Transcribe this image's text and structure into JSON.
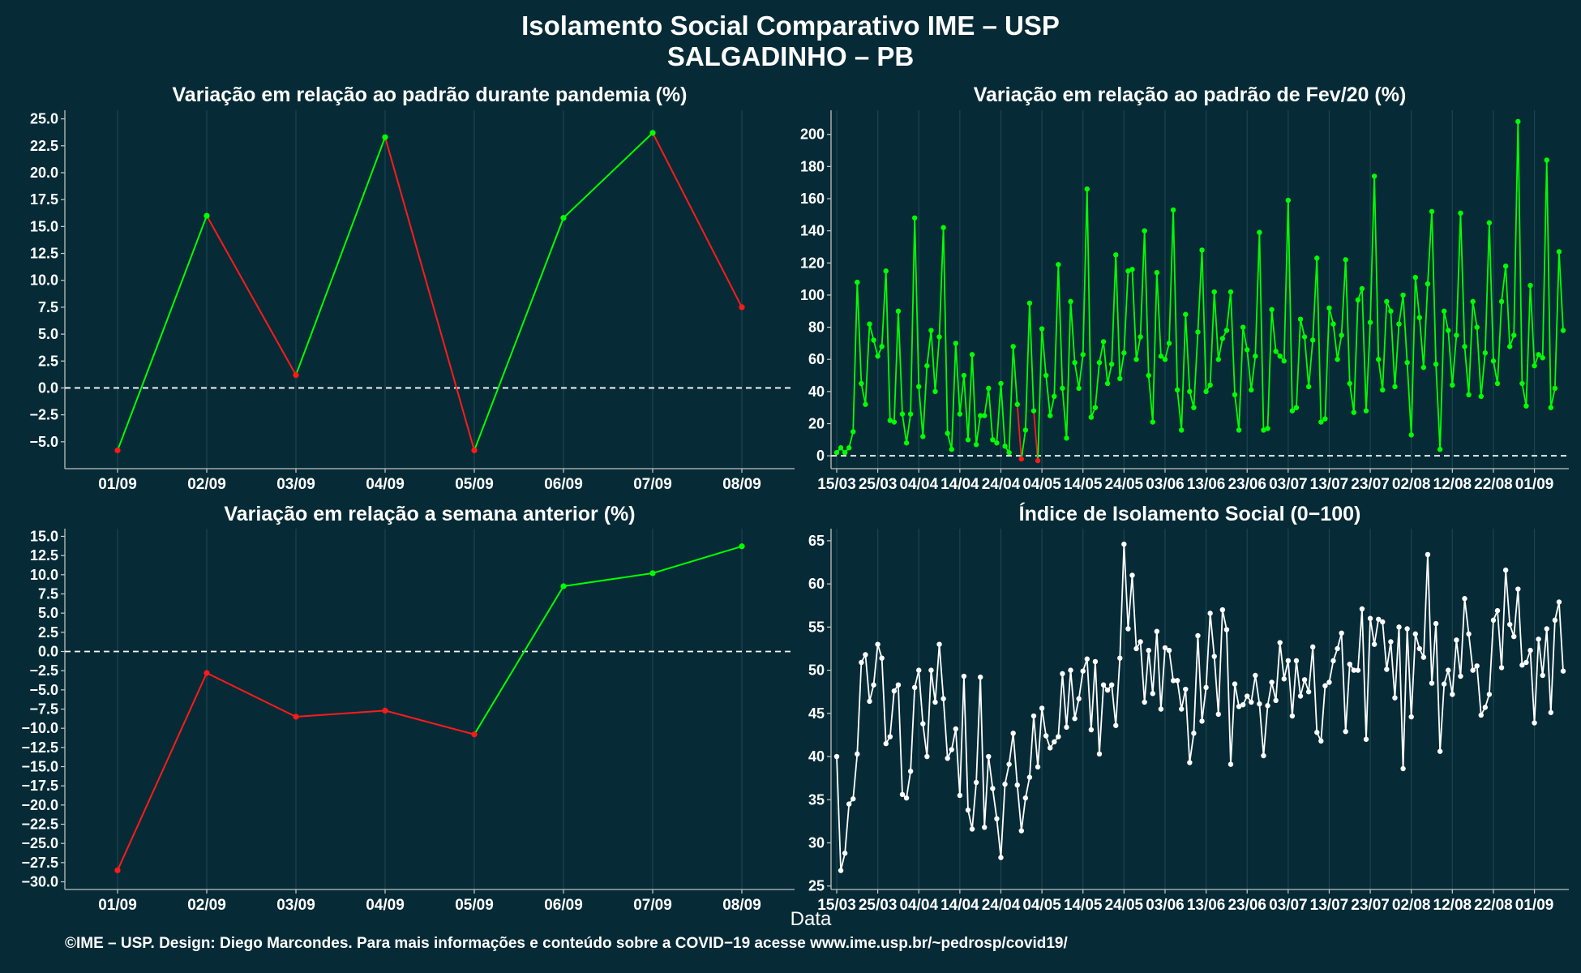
{
  "header": {
    "title": "Isolamento Social Comparativo IME – USP",
    "subtitle": "SALGADINHO – PB"
  },
  "footer": "©IME – USP. Design: Diego Marcondes. Para mais informações e conteúdo sobre a COVID−19 acesse www.ime.usp.br/~pedrosp/covid19/",
  "x_axis_label": "Data",
  "colors": {
    "background": "#062b36",
    "panel": "#062b36",
    "up": "#00ff00",
    "down": "#ff1a1a",
    "white": "#ffffff",
    "grid": "#1c4550"
  },
  "chart_data": [
    {
      "id": "p1",
      "type": "line",
      "title": "Variação em relação ao padrão durante pandemia (%)",
      "categories": [
        "01/09",
        "02/09",
        "03/09",
        "04/09",
        "05/09",
        "06/09",
        "07/09",
        "08/09"
      ],
      "values": [
        -5.8,
        16.0,
        1.2,
        23.3,
        -5.8,
        15.8,
        23.7,
        7.5
      ],
      "ylim": [
        -7.5,
        25.8
      ],
      "yticks": [
        25.0,
        22.5,
        20.0,
        17.5,
        15.0,
        12.5,
        10.0,
        7.5,
        5.0,
        2.5,
        0.0,
        -2.5,
        -5.0
      ],
      "ytick_labels": [
        "25.0",
        "22.5",
        "20.0",
        "17.5",
        "15.0",
        "12.5",
        "10.0",
        "7.5",
        "5.0",
        "2.5",
        "0.0",
        "−2.5",
        "−5.0"
      ],
      "coloring": "trend",
      "zero_line": true
    },
    {
      "id": "p2",
      "type": "line",
      "title": "Variação em relação ao padrão de Fev/20 (%)",
      "x_tick_labels": [
        "15/03",
        "25/03",
        "04/04",
        "14/04",
        "24/04",
        "04/05",
        "14/05",
        "24/05",
        "03/06",
        "13/06",
        "23/06",
        "03/07",
        "13/07",
        "23/07",
        "02/08",
        "12/08",
        "22/08",
        "01/09"
      ],
      "values": [
        2,
        5,
        2,
        5,
        15,
        108,
        45,
        32,
        82,
        72,
        62,
        68,
        115,
        22,
        21,
        90,
        26,
        8,
        26,
        148,
        43,
        12,
        56,
        78,
        40,
        74,
        142,
        14,
        4,
        70,
        26,
        50,
        10,
        63,
        7,
        25,
        25,
        42,
        10,
        8,
        45,
        6,
        2,
        68,
        32,
        -2,
        16,
        95,
        28,
        -3,
        79,
        50,
        25,
        37,
        119,
        42,
        11,
        96,
        58,
        42,
        63,
        166,
        24,
        30,
        58,
        71,
        45,
        57,
        125,
        48,
        64,
        115,
        116,
        60,
        74,
        140,
        50,
        21,
        114,
        62,
        60,
        70,
        153,
        41,
        16,
        88,
        40,
        30,
        77,
        128,
        40,
        44,
        102,
        60,
        73,
        78,
        102,
        38,
        16,
        80,
        66,
        41,
        62,
        139,
        16,
        17,
        91,
        65,
        62,
        59,
        159,
        28,
        30,
        85,
        74,
        43,
        72,
        123,
        21,
        23,
        92,
        82,
        60,
        75,
        122,
        45,
        27,
        97,
        104,
        28,
        83,
        174,
        60,
        41,
        96,
        90,
        43,
        82,
        100,
        58,
        13,
        111,
        86,
        55,
        107,
        152,
        57,
        4,
        90,
        78,
        44,
        75,
        151,
        68,
        38,
        96,
        80,
        37,
        64,
        145,
        59,
        45,
        96,
        118,
        68,
        75,
        208,
        45,
        31,
        106,
        56,
        63,
        61,
        184,
        30,
        42,
        127,
        78
      ],
      "ylim": [
        -8,
        215
      ],
      "yticks": [
        0,
        20,
        40,
        60,
        80,
        100,
        120,
        140,
        160,
        180,
        200
      ],
      "ytick_labels": [
        "0",
        "20",
        "40",
        "60",
        "80",
        "100",
        "120",
        "140",
        "160",
        "180",
        "200"
      ],
      "coloring": "sign",
      "zero_line": true
    },
    {
      "id": "p3",
      "type": "line",
      "title": "Variação em relação a semana anterior (%)",
      "categories": [
        "01/09",
        "02/09",
        "03/09",
        "04/09",
        "05/09",
        "06/09",
        "07/09",
        "08/09"
      ],
      "values": [
        -28.5,
        -2.8,
        -8.5,
        -7.7,
        -10.8,
        8.5,
        10.2,
        13.7
      ],
      "ylim": [
        -31,
        16
      ],
      "yticks": [
        15.0,
        12.5,
        10.0,
        7.5,
        5.0,
        2.5,
        0.0,
        -2.5,
        -5.0,
        -7.5,
        -10.0,
        -12.5,
        -15.0,
        -17.5,
        -20.0,
        -22.5,
        -25.0,
        -27.5,
        -30.0
      ],
      "ytick_labels": [
        "15.0",
        "12.5",
        "10.0",
        "7.5",
        "5.0",
        "2.5",
        "0.0",
        "−2.5",
        "−5.0",
        "−7.5",
        "−10.0",
        "−12.5",
        "−15.0",
        "−17.5",
        "−20.0",
        "−22.5",
        "−25.0",
        "−27.5",
        "−30.0"
      ],
      "coloring": "sign",
      "zero_line": true
    },
    {
      "id": "p4",
      "type": "line",
      "title": "Índice de Isolamento Social (0−100)",
      "x_tick_labels": [
        "15/03",
        "25/03",
        "04/04",
        "14/04",
        "24/04",
        "04/05",
        "14/05",
        "24/05",
        "03/06",
        "13/06",
        "23/06",
        "03/07",
        "13/07",
        "23/07",
        "02/08",
        "12/08",
        "22/08",
        "01/09"
      ],
      "values": [
        40.0,
        26.8,
        28.8,
        34.5,
        35.1,
        40.3,
        50.9,
        51.8,
        46.4,
        48.3,
        53.0,
        51.4,
        41.5,
        42.3,
        47.6,
        48.3,
        35.6,
        35.2,
        38.3,
        48.0,
        50.0,
        43.8,
        40.0,
        50.0,
        46.3,
        53.0,
        46.7,
        39.8,
        40.8,
        43.2,
        35.5,
        49.3,
        33.8,
        31.6,
        37.0,
        49.2,
        31.8,
        40.0,
        36.3,
        32.8,
        28.3,
        36.8,
        39.1,
        42.7,
        36.7,
        31.4,
        35.2,
        37.6,
        44.7,
        38.8,
        45.6,
        42.4,
        41.0,
        41.7,
        42.3,
        49.6,
        43.4,
        50.0,
        44.4,
        46.7,
        49.9,
        51.3,
        43.1,
        51.0,
        40.3,
        48.3,
        47.7,
        48.3,
        43.6,
        51.4,
        64.6,
        54.8,
        61.0,
        52.5,
        53.3,
        46.3,
        52.3,
        47.3,
        54.5,
        45.5,
        52.6,
        52.3,
        48.8,
        48.8,
        45.5,
        47.8,
        39.3,
        42.7,
        54.0,
        44.1,
        48.0,
        56.6,
        51.6,
        44.9,
        57.0,
        54.7,
        39.1,
        48.4,
        45.8,
        46.0,
        47.0,
        46.3,
        49.4,
        46.1,
        40.1,
        45.9,
        48.6,
        46.5,
        53.2,
        49.0,
        51.1,
        44.7,
        51.1,
        47.0,
        48.9,
        47.5,
        52.7,
        42.8,
        41.8,
        48.2,
        48.6,
        51.1,
        52.5,
        54.3,
        42.9,
        50.7,
        50.0,
        50.0,
        57.1,
        42.0,
        56.0,
        53.0,
        55.9,
        55.6,
        50.1,
        53.3,
        46.8,
        55.0,
        38.6,
        54.8,
        44.6,
        54.2,
        52.5,
        51.5,
        63.4,
        48.5,
        55.4,
        40.6,
        48.4,
        50.0,
        47.2,
        53.5,
        49.3,
        58.3,
        54.2,
        50.0,
        50.5,
        44.8,
        45.7,
        47.2,
        55.8,
        56.9,
        50.3,
        61.6,
        55.3,
        53.9,
        59.4,
        50.6,
        50.9,
        52.3,
        43.9,
        53.6,
        49.4,
        54.8,
        45.1,
        55.8,
        57.9,
        49.9
      ],
      "ylim": [
        24.6,
        66.4
      ],
      "yticks": [
        25,
        30,
        35,
        40,
        45,
        50,
        55,
        60,
        65
      ],
      "ytick_labels": [
        "25",
        "30",
        "35",
        "40",
        "45",
        "50",
        "55",
        "60",
        "65"
      ],
      "coloring": "white",
      "zero_line": false
    }
  ]
}
